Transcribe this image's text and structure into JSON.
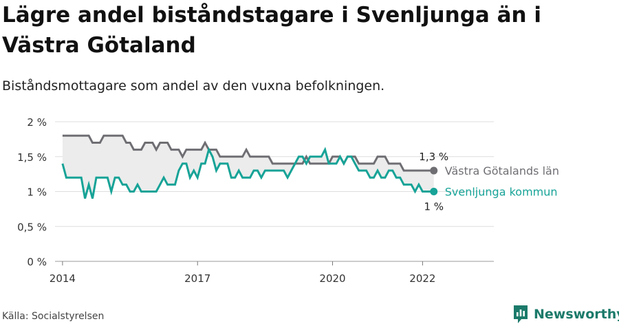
{
  "header": {
    "title": "Lägre andel biståndstagare i Svenljunga än i Västra Götaland",
    "subtitle": "Biståndsmottagare som andel av den vuxna befolkningen."
  },
  "footer": {
    "source": "Källa: Socialstyrelsen",
    "brand": "Newsworthy"
  },
  "colors": {
    "region": "#6f6e73",
    "municipality": "#17a397",
    "band": "#ececec",
    "brand": "#1b7a6a"
  },
  "icons": {
    "brand": "newsworthy-logo-icon"
  },
  "chart_data": {
    "type": "line",
    "title": "Lägre andel biståndstagare i Svenljunga än i Västra Götaland",
    "subtitle": "Biståndsmottagare som andel av den vuxna befolkningen.",
    "x_ticks": [
      "2014",
      "2017",
      "2020",
      "2022"
    ],
    "y_ticks": [
      "0 %",
      "0,5 %",
      "1 %",
      "1,5 %",
      "2 %"
    ],
    "ylim": [
      0,
      2
    ],
    "xlim": [
      "2013-11",
      "2023-08"
    ],
    "grid": true,
    "x": [
      "2014-01",
      "2014-02",
      "2014-03",
      "2014-04",
      "2014-05",
      "2014-06",
      "2014-07",
      "2014-08",
      "2014-09",
      "2014-10",
      "2014-11",
      "2014-12",
      "2015-01",
      "2015-02",
      "2015-03",
      "2015-04",
      "2015-05",
      "2015-06",
      "2015-07",
      "2015-08",
      "2015-09",
      "2015-10",
      "2015-11",
      "2015-12",
      "2016-01",
      "2016-02",
      "2016-03",
      "2016-04",
      "2016-05",
      "2016-06",
      "2016-07",
      "2016-08",
      "2016-09",
      "2016-10",
      "2016-11",
      "2016-12",
      "2017-01",
      "2017-02",
      "2017-03",
      "2017-04",
      "2017-05",
      "2017-06",
      "2017-07",
      "2017-08",
      "2017-09",
      "2017-10",
      "2017-11",
      "2017-12",
      "2018-01",
      "2018-02",
      "2018-03",
      "2018-04",
      "2018-05",
      "2018-06",
      "2018-07",
      "2018-08",
      "2018-09",
      "2018-10",
      "2018-11",
      "2018-12",
      "2019-01",
      "2019-02",
      "2019-03",
      "2019-04",
      "2019-05",
      "2019-06",
      "2019-07",
      "2019-08",
      "2019-09",
      "2019-10",
      "2019-11",
      "2019-12",
      "2020-01",
      "2020-02",
      "2020-03",
      "2020-04",
      "2020-05",
      "2020-06",
      "2020-07",
      "2020-08",
      "2020-09",
      "2020-10",
      "2020-11",
      "2020-12",
      "2021-01",
      "2021-02",
      "2021-03",
      "2021-04",
      "2021-05",
      "2021-06",
      "2021-07",
      "2021-08",
      "2021-09",
      "2021-10",
      "2021-11",
      "2021-12",
      "2022-01",
      "2022-02",
      "2022-03",
      "2022-04"
    ],
    "series": [
      {
        "name": "Västra Götalands län",
        "end_label": "1,3 %",
        "values": [
          1.8,
          1.8,
          1.8,
          1.8,
          1.8,
          1.8,
          1.8,
          1.8,
          1.7,
          1.7,
          1.7,
          1.8,
          1.8,
          1.8,
          1.8,
          1.8,
          1.8,
          1.7,
          1.7,
          1.6,
          1.6,
          1.6,
          1.7,
          1.7,
          1.7,
          1.6,
          1.7,
          1.7,
          1.7,
          1.6,
          1.6,
          1.6,
          1.5,
          1.6,
          1.6,
          1.6,
          1.6,
          1.6,
          1.7,
          1.6,
          1.6,
          1.6,
          1.5,
          1.5,
          1.5,
          1.5,
          1.5,
          1.5,
          1.5,
          1.6,
          1.5,
          1.5,
          1.5,
          1.5,
          1.5,
          1.5,
          1.4,
          1.4,
          1.4,
          1.4,
          1.4,
          1.4,
          1.4,
          1.4,
          1.4,
          1.5,
          1.4,
          1.4,
          1.4,
          1.4,
          1.4,
          1.4,
          1.5,
          1.5,
          1.5,
          1.4,
          1.5,
          1.5,
          1.5,
          1.4,
          1.4,
          1.4,
          1.4,
          1.4,
          1.5,
          1.5,
          1.5,
          1.4,
          1.4,
          1.4,
          1.4,
          1.3,
          1.3,
          1.3,
          1.3,
          1.3,
          1.3,
          1.3,
          1.3,
          1.3
        ]
      },
      {
        "name": "Svenljunga kommun",
        "end_label": "1 %",
        "values": [
          1.4,
          1.2,
          1.2,
          1.2,
          1.2,
          1.2,
          0.9,
          1.1,
          0.9,
          1.2,
          1.2,
          1.2,
          1.2,
          1.0,
          1.2,
          1.2,
          1.1,
          1.1,
          1.0,
          1.0,
          1.1,
          1.0,
          1.0,
          1.0,
          1.0,
          1.0,
          1.1,
          1.2,
          1.1,
          1.1,
          1.1,
          1.3,
          1.4,
          1.4,
          1.2,
          1.3,
          1.2,
          1.4,
          1.4,
          1.6,
          1.5,
          1.3,
          1.4,
          1.4,
          1.4,
          1.2,
          1.2,
          1.3,
          1.2,
          1.2,
          1.2,
          1.3,
          1.3,
          1.2,
          1.3,
          1.3,
          1.3,
          1.3,
          1.3,
          1.3,
          1.2,
          1.3,
          1.4,
          1.5,
          1.5,
          1.4,
          1.5,
          1.5,
          1.5,
          1.5,
          1.6,
          1.4,
          1.4,
          1.4,
          1.5,
          1.4,
          1.5,
          1.5,
          1.4,
          1.3,
          1.3,
          1.3,
          1.2,
          1.2,
          1.3,
          1.2,
          1.2,
          1.3,
          1.3,
          1.2,
          1.2,
          1.1,
          1.1,
          1.1,
          1.0,
          1.1,
          1.0,
          1.0,
          1.0,
          1.0
        ]
      }
    ]
  }
}
